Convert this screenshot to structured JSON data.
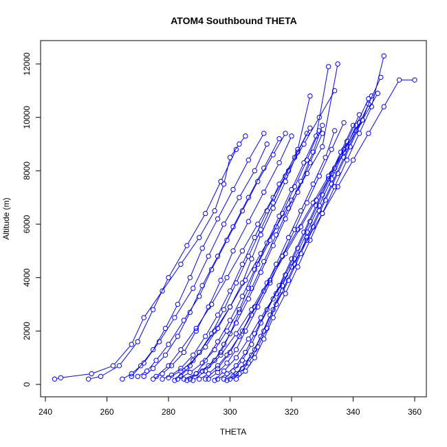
{
  "chart_data": {
    "type": "line",
    "title": "ATOM4 Southbound THETA",
    "xlabel": "THETA",
    "ylabel": "Altitude (m)",
    "xlim": [
      240,
      360
    ],
    "ylim": [
      0,
      12000
    ],
    "xticks": [
      240,
      260,
      280,
      300,
      320,
      340,
      360
    ],
    "yticks": [
      0,
      2000,
      4000,
      6000,
      8000,
      10000,
      12000
    ],
    "grid": false,
    "color": "#0000ff",
    "marker": "open-circle",
    "series": [
      {
        "x": [
          243,
          245,
          255,
          262,
          268,
          272,
          278,
          284,
          290,
          295,
          298,
          300,
          303,
          305
        ],
        "y": [
          200,
          250,
          400,
          700,
          1500,
          2500,
          3500,
          4500,
          5500,
          6500,
          7500,
          8500,
          9000,
          9300
        ]
      },
      {
        "x": [
          254,
          258,
          264,
          270,
          275,
          280,
          286,
          292,
          297,
          302
        ],
        "y": [
          200,
          300,
          700,
          1600,
          2800,
          4000,
          5200,
          6400,
          7600,
          8800
        ]
      },
      {
        "x": [
          265,
          268,
          272,
          277,
          282,
          288,
          293,
          298,
          303,
          308,
          312
        ],
        "y": [
          200,
          400,
          800,
          1600,
          2500,
          3600,
          4800,
          6000,
          7000,
          8000,
          9000
        ]
      },
      {
        "x": [
          270,
          273,
          276,
          280,
          285,
          290,
          294,
          299,
          304,
          309,
          314,
          318
        ],
        "y": [
          300,
          500,
          900,
          1500,
          2400,
          3300,
          4300,
          5400,
          6500,
          7600,
          8600,
          9400
        ]
      },
      {
        "x": [
          275,
          278,
          281,
          285,
          289,
          293,
          297,
          301,
          306,
          311,
          316,
          320
        ],
        "y": [
          200,
          400,
          700,
          1200,
          2000,
          2900,
          3900,
          5000,
          6100,
          7200,
          8300,
          9300
        ]
      },
      {
        "x": [
          278,
          281,
          284,
          288,
          292,
          296,
          300,
          304,
          308,
          312,
          316,
          321,
          325
        ],
        "y": [
          200,
          350,
          600,
          1100,
          1800,
          2600,
          3500,
          4500,
          5500,
          6500,
          7500,
          8500,
          9400
        ]
      },
      {
        "x": [
          280,
          284,
          288,
          292,
          296,
          300,
          304,
          307,
          310,
          314,
          318,
          322,
          326
        ],
        "y": [
          250,
          500,
          900,
          1400,
          2100,
          2900,
          3800,
          4700,
          5600,
          6600,
          7600,
          8700,
          9600
        ]
      },
      {
        "x": [
          283,
          287,
          291,
          295,
          299,
          303,
          306,
          309,
          313,
          317,
          321,
          325,
          329
        ],
        "y": [
          200,
          450,
          800,
          1300,
          2000,
          2800,
          3600,
          4500,
          5400,
          6400,
          7400,
          8400,
          9500
        ]
      },
      {
        "x": [
          285,
          289,
          293,
          297,
          300,
          303,
          307,
          311,
          315,
          319,
          323,
          327,
          330
        ],
        "y": [
          200,
          400,
          700,
          1200,
          1900,
          2700,
          3600,
          4600,
          5600,
          6600,
          7600,
          8700,
          9700
        ]
      },
      {
        "x": [
          287,
          291,
          295,
          298,
          302,
          306,
          310,
          314,
          318,
          322,
          326,
          330
        ],
        "y": [
          200,
          500,
          900,
          1500,
          2300,
          3200,
          4200,
          5200,
          6200,
          7200,
          8300,
          9400
        ]
      },
      {
        "x": [
          290,
          293,
          296,
          299,
          303,
          307,
          311,
          315,
          319,
          323,
          327,
          331,
          334
        ],
        "y": [
          200,
          400,
          700,
          1100,
          1800,
          2600,
          3500,
          4500,
          5500,
          6500,
          7500,
          8500,
          9500
        ]
      },
      {
        "x": [
          293,
          296,
          299,
          302,
          305,
          309,
          313,
          317,
          321,
          325,
          329,
          333,
          337
        ],
        "y": [
          200,
          450,
          800,
          1300,
          2000,
          2900,
          3800,
          4800,
          5800,
          6800,
          7800,
          8800,
          9800
        ]
      },
      {
        "x": [
          296,
          299,
          302,
          305,
          308,
          312,
          316,
          320,
          324,
          328,
          332,
          336,
          340
        ],
        "y": [
          200,
          400,
          700,
          1200,
          1900,
          2800,
          3700,
          4700,
          5700,
          6700,
          7700,
          8700,
          9700
        ]
      },
      {
        "x": [
          298,
          301,
          304,
          307,
          310,
          314,
          318,
          322,
          326,
          330,
          334,
          338,
          342
        ],
        "y": [
          200,
          500,
          900,
          1500,
          2300,
          3200,
          4100,
          5100,
          6100,
          7100,
          8100,
          9100,
          10100
        ]
      },
      {
        "x": [
          300,
          303,
          306,
          309,
          312,
          315,
          319,
          323,
          327,
          331,
          335,
          339,
          343,
          346
        ],
        "y": [
          200,
          400,
          800,
          1400,
          2100,
          3000,
          3900,
          4900,
          5900,
          6900,
          7900,
          8900,
          9900,
          10800
        ]
      },
      {
        "x": [
          301,
          304,
          307,
          310,
          313,
          317,
          321,
          325,
          329,
          333,
          337,
          341,
          345,
          349
        ],
        "y": [
          300,
          600,
          1100,
          1800,
          2600,
          3500,
          4500,
          5500,
          6500,
          7500,
          8500,
          9500,
          10500,
          11500
        ]
      },
      {
        "x": [
          302,
          305,
          308,
          311,
          314,
          318,
          322,
          326,
          330,
          334,
          338,
          342,
          346,
          350
        ],
        "y": [
          200,
          500,
          1000,
          1700,
          2500,
          3400,
          4400,
          5400,
          6400,
          7400,
          8400,
          9400,
          10400,
          12300
        ]
      },
      {
        "x": [
          276,
          280,
          284,
          289,
          294,
          299,
          304,
          309,
          314,
          319,
          324,
          329,
          334
        ],
        "y": [
          300,
          700,
          1300,
          2100,
          3000,
          4000,
          5000,
          6000,
          7000,
          8000,
          9000,
          10000,
          11000
        ]
      },
      {
        "x": [
          282,
          286,
          290,
          295,
          300,
          305,
          310,
          315,
          320,
          325,
          330,
          335
        ],
        "y": [
          150,
          600,
          1200,
          2000,
          2900,
          3900,
          4900,
          5900,
          6900,
          7900,
          8900,
          12000
        ]
      },
      {
        "x": [
          288,
          292,
          297,
          302,
          307,
          312,
          317,
          322,
          327,
          332,
          337,
          342
        ],
        "y": [
          150,
          500,
          1100,
          1900,
          2800,
          3800,
          4800,
          5800,
          6800,
          7800,
          8800,
          9800
        ]
      },
      {
        "x": [
          292,
          296,
          300,
          304,
          308,
          313,
          318,
          323,
          328,
          333,
          338,
          343,
          348
        ],
        "y": [
          200,
          600,
          1200,
          2000,
          2900,
          3900,
          4900,
          5900,
          6900,
          7900,
          8900,
          9900,
          10900
        ]
      },
      {
        "x": [
          295,
          298,
          302,
          306,
          310,
          315,
          320,
          325,
          330,
          335,
          340,
          345,
          350,
          355,
          360
        ],
        "y": [
          150,
          500,
          1000,
          1700,
          2500,
          3400,
          4400,
          5400,
          6400,
          7400,
          8400,
          9400,
          10400,
          11400,
          11400
        ]
      },
      {
        "x": [
          272,
          275,
          279,
          283,
          287,
          291,
          296,
          301,
          306,
          311,
          316
        ],
        "y": [
          300,
          600,
          1100,
          1800,
          2700,
          3700,
          4800,
          5900,
          7000,
          8100,
          9200
        ]
      },
      {
        "x": [
          268,
          271,
          275,
          279,
          283,
          287,
          291,
          296,
          301,
          306,
          311
        ],
        "y": [
          300,
          700,
          1300,
          2100,
          3000,
          4000,
          5100,
          6200,
          7300,
          8400,
          9400
        ]
      },
      {
        "x": [
          284,
          287,
          290,
          294,
          298,
          302,
          306,
          310,
          314,
          318,
          322,
          326
        ],
        "y": [
          300,
          700,
          1200,
          1900,
          2800,
          3800,
          4800,
          5800,
          6800,
          7800,
          8800,
          10800
        ]
      },
      {
        "x": [
          286,
          289,
          292,
          296,
          300,
          304,
          308,
          312,
          316,
          320,
          324,
          328,
          332
        ],
        "y": [
          150,
          400,
          900,
          1600,
          2400,
          3300,
          4300,
          5300,
          6300,
          7300,
          8300,
          9300,
          11900
        ]
      },
      {
        "x": [
          299,
          302,
          305,
          308,
          311,
          314,
          317,
          321,
          325,
          329,
          333,
          337,
          341,
          345
        ],
        "y": [
          150,
          400,
          800,
          1300,
          2000,
          2800,
          3700,
          4700,
          5700,
          6700,
          7700,
          8700,
          9700,
          10700
        ]
      }
    ]
  }
}
